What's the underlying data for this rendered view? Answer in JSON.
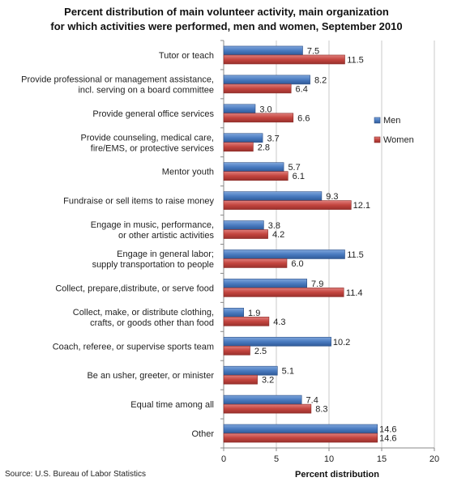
{
  "chart_data": {
    "type": "bar",
    "orientation": "horizontal",
    "title_lines": [
      "Percent distribution of main volunteer activity, main organization",
      "for which activities were performed, men and women, September 2010"
    ],
    "xlabel": "Percent distribution",
    "ylabel": "",
    "xlim": [
      0,
      20
    ],
    "xticks": [
      0,
      5,
      10,
      15,
      20
    ],
    "grid": true,
    "legend_position": "right",
    "categories": [
      [
        "Tutor or teach"
      ],
      [
        "Provide professional or management  assistance,",
        "incl. serving on a board committee"
      ],
      [
        "Provide general office services"
      ],
      [
        "Provide counseling, medical care,",
        "fire/EMS, or protective services"
      ],
      [
        "Mentor youth"
      ],
      [
        "Fundraise or sell items to raise money"
      ],
      [
        "Engage in music, performance,",
        "or other artistic activities"
      ],
      [
        "Engage  in general labor;",
        "supply transportation  to people"
      ],
      [
        "Collect, prepare,distribute,  or serve food"
      ],
      [
        "Collect, make,  or distribute clothing,",
        "crafts, or goods other than food"
      ],
      [
        "Coach, referee, or supervise sports team"
      ],
      [
        "Be an usher, greeter, or minister"
      ],
      [
        "Equal time among all"
      ],
      [
        "Other"
      ]
    ],
    "series": [
      {
        "name": "Men",
        "color": "#3f6fb5",
        "values": [
          7.5,
          8.2,
          3.0,
          3.7,
          5.7,
          9.3,
          3.8,
          11.5,
          7.9,
          1.9,
          10.2,
          5.1,
          7.4,
          14.6
        ],
        "labels": [
          "7.5",
          "8.2",
          "3.0",
          "3.7",
          "5.7",
          "9.3",
          "3.8",
          "11.5",
          "7.9",
          "1.9",
          "10.2",
          "5.1",
          "7.4",
          "14.6"
        ]
      },
      {
        "name": "Women",
        "color": "#c0433f",
        "values": [
          11.5,
          6.4,
          6.6,
          2.8,
          6.1,
          12.1,
          4.2,
          6.0,
          11.4,
          4.3,
          2.5,
          3.2,
          8.3,
          14.6
        ],
        "labels": [
          "11.5",
          "6.4",
          "6.6",
          "2.8",
          "6.1",
          "12.1",
          "4.2",
          "6.0",
          "11.4",
          "4.3",
          "2.5",
          "3.2",
          "8.3",
          "14.6"
        ]
      }
    ]
  },
  "source": "Source: U.S. Bureau of Labor Statistics"
}
